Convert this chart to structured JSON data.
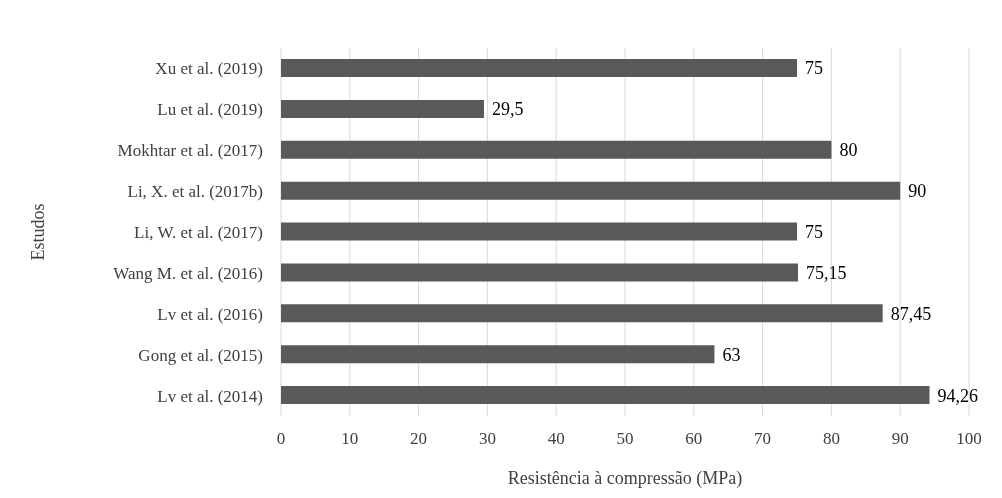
{
  "chart_data": {
    "type": "bar",
    "orientation": "horizontal",
    "xlabel": "Resistência à compressão (MPa)",
    "ylabel": "Estudos",
    "categories": [
      "Xu et al. (2019)",
      "Lu et al. (2019)",
      "Mokhtar et al. (2017)",
      "Li, X. et al. (2017b)",
      "Li, W. et al. (2017)",
      "Wang M. et al. (2016)",
      "Lv et al. (2016)",
      "Gong et al. (2015)",
      "Lv et al. (2014)"
    ],
    "values": [
      75,
      29.5,
      80,
      90,
      75,
      75.15,
      87.45,
      63,
      94.26
    ],
    "value_labels": [
      "75",
      "29,5",
      "80",
      "90",
      "75",
      "75,15",
      "87,45",
      "63",
      "94,26"
    ],
    "color": "#595959",
    "xlim": [
      0,
      100
    ],
    "xticks": [
      0,
      10,
      20,
      30,
      40,
      50,
      60,
      70,
      80,
      90,
      100
    ],
    "grid": "x",
    "legend": false
  }
}
